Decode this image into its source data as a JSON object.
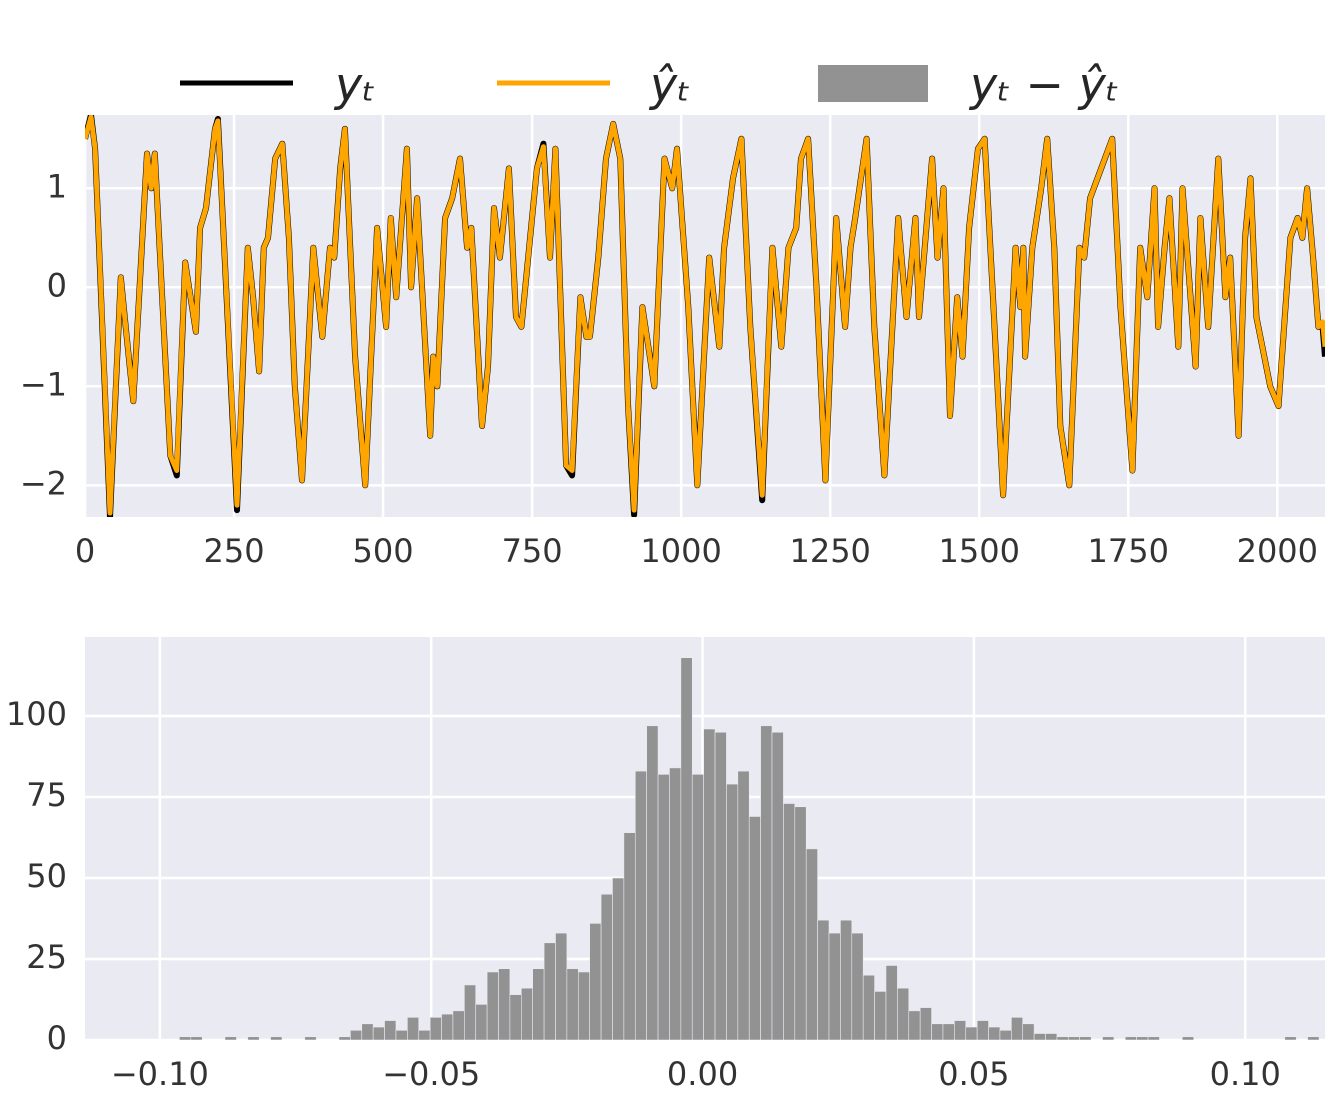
{
  "chart_data": [
    {
      "type": "line",
      "x": [
        0,
        10,
        17,
        42,
        60,
        70,
        81,
        104,
        111,
        117,
        143,
        154,
        168,
        186,
        193,
        203,
        218,
        223,
        255,
        273,
        282,
        292,
        300,
        307,
        319,
        331,
        342,
        352,
        364,
        383,
        398,
        411,
        418,
        428,
        436,
        453,
        470,
        490,
        505,
        513,
        522,
        540,
        547,
        557,
        579,
        584,
        591,
        604,
        616,
        629,
        641,
        648,
        666,
        676,
        686,
        696,
        711,
        723,
        732,
        758,
        769,
        780,
        789,
        807,
        817,
        831,
        841,
        847,
        861,
        874,
        886,
        898,
        911,
        921,
        935,
        955,
        972,
        985,
        993,
        1012,
        1027,
        1047,
        1064,
        1072,
        1087,
        1101,
        1116,
        1136,
        1153,
        1168,
        1180,
        1193,
        1201,
        1213,
        1227,
        1242,
        1260,
        1275,
        1284,
        1292,
        1311,
        1324,
        1341,
        1364,
        1378,
        1393,
        1399,
        1421,
        1430,
        1440,
        1451,
        1463,
        1472,
        1483,
        1498,
        1509,
        1524,
        1540,
        1561,
        1569,
        1574,
        1577,
        1589,
        1604,
        1614,
        1626,
        1636,
        1651,
        1668,
        1676,
        1686,
        1723,
        1737,
        1757,
        1770,
        1782,
        1794,
        1800,
        1811,
        1819,
        1834,
        1841,
        1863,
        1871,
        1884,
        1901,
        1913,
        1921,
        1935,
        1946,
        1955,
        1965,
        1988,
        2002,
        2022,
        2034,
        2042,
        2050,
        2060,
        2069,
        2076,
        2080
      ],
      "series": [
        {
          "name": "yₜ",
          "color": "#000000",
          "values": [
            1.5,
            1.74,
            1.4,
            -2.32,
            0.1,
            -0.5,
            -1.15,
            1.35,
            1.0,
            1.35,
            -1.7,
            -1.9,
            0.25,
            -0.45,
            0.6,
            0.8,
            1.6,
            1.7,
            -2.25,
            0.4,
            -0.1,
            -0.85,
            0.4,
            0.5,
            1.3,
            1.45,
            0.5,
            -1.0,
            -1.95,
            0.4,
            -0.5,
            0.4,
            0.3,
            1.2,
            1.6,
            -0.7,
            -2.0,
            0.6,
            -0.4,
            0.7,
            -0.1,
            1.4,
            0.0,
            0.9,
            -1.5,
            -0.7,
            -1.0,
            0.7,
            0.9,
            1.3,
            0.4,
            0.6,
            -1.4,
            -0.8,
            0.8,
            0.3,
            1.2,
            -0.3,
            -0.4,
            1.2,
            1.45,
            0.3,
            1.4,
            -1.8,
            -1.9,
            -0.1,
            -0.5,
            -0.5,
            0.3,
            1.3,
            1.65,
            1.3,
            -1.2,
            -2.3,
            -0.2,
            -1.0,
            1.3,
            1.0,
            1.4,
            -0.2,
            -2.0,
            0.3,
            -0.6,
            0.4,
            1.1,
            1.5,
            -0.4,
            -2.15,
            0.4,
            -0.6,
            0.4,
            0.6,
            1.3,
            1.5,
            0.0,
            -1.95,
            0.7,
            -0.4,
            0.4,
            0.7,
            1.5,
            -0.4,
            -1.9,
            0.7,
            -0.3,
            0.7,
            -0.3,
            1.3,
            0.3,
            1.0,
            -1.3,
            -0.1,
            -0.7,
            0.6,
            1.4,
            1.5,
            -0.2,
            -2.1,
            0.4,
            -0.2,
            0.4,
            -0.7,
            0.4,
            1.0,
            1.5,
            0.4,
            -1.4,
            -2.0,
            0.4,
            0.3,
            0.9,
            1.5,
            -0.2,
            -1.85,
            0.4,
            -0.1,
            1.0,
            -0.4,
            0.4,
            0.9,
            -0.6,
            1.0,
            -0.8,
            0.7,
            -0.4,
            1.3,
            -0.1,
            0.3,
            -1.5,
            0.5,
            1.1,
            -0.3,
            -1.0,
            -1.2,
            0.5,
            0.7,
            0.5,
            1.0,
            0.3,
            -0.4,
            -0.4,
            -0.7
          ]
        },
        {
          "name": "ŷₜ",
          "color": "#ffa500",
          "values": [
            1.5,
            1.72,
            1.4,
            -2.28,
            0.1,
            -0.5,
            -1.15,
            1.35,
            1.0,
            1.35,
            -1.7,
            -1.85,
            0.25,
            -0.45,
            0.6,
            0.8,
            1.6,
            1.68,
            -2.2,
            0.4,
            -0.1,
            -0.85,
            0.4,
            0.5,
            1.3,
            1.45,
            0.5,
            -1.0,
            -1.95,
            0.4,
            -0.5,
            0.4,
            0.3,
            1.2,
            1.6,
            -0.7,
            -2.0,
            0.6,
            -0.4,
            0.7,
            -0.1,
            1.4,
            0.0,
            0.9,
            -1.5,
            -0.7,
            -1.0,
            0.7,
            0.9,
            1.3,
            0.4,
            0.6,
            -1.4,
            -0.8,
            0.8,
            0.3,
            1.2,
            -0.3,
            -0.4,
            1.2,
            1.42,
            0.3,
            1.4,
            -1.8,
            -1.85,
            -0.1,
            -0.5,
            -0.5,
            0.3,
            1.3,
            1.65,
            1.3,
            -1.2,
            -2.25,
            -0.2,
            -1.0,
            1.3,
            1.0,
            1.4,
            -0.2,
            -2.0,
            0.3,
            -0.6,
            0.4,
            1.1,
            1.5,
            -0.4,
            -2.1,
            0.4,
            -0.6,
            0.4,
            0.6,
            1.3,
            1.5,
            0.0,
            -1.95,
            0.7,
            -0.4,
            0.4,
            0.7,
            1.5,
            -0.4,
            -1.9,
            0.7,
            -0.3,
            0.7,
            -0.3,
            1.3,
            0.3,
            1.0,
            -1.3,
            -0.1,
            -0.7,
            0.6,
            1.4,
            1.5,
            -0.2,
            -2.1,
            0.4,
            -0.2,
            0.4,
            -0.7,
            0.4,
            1.0,
            1.5,
            0.4,
            -1.4,
            -2.0,
            0.4,
            0.3,
            0.9,
            1.5,
            -0.2,
            -1.85,
            0.4,
            -0.1,
            1.0,
            -0.4,
            0.4,
            0.9,
            -0.6,
            1.0,
            -0.8,
            0.7,
            -0.4,
            1.3,
            -0.1,
            0.3,
            -1.5,
            0.5,
            1.1,
            -0.3,
            -1.0,
            -1.2,
            0.5,
            0.7,
            0.5,
            1.0,
            0.3,
            -0.4,
            -0.35,
            -0.6
          ]
        }
      ],
      "xlim": [
        0,
        2080
      ],
      "ylim": [
        -2.32,
        1.74
      ],
      "xticks": [
        0,
        250,
        500,
        750,
        1000,
        1250,
        1500,
        1750,
        2000
      ],
      "yticks": [
        {
          "value": -2,
          "label": "−2"
        },
        {
          "value": -1,
          "label": "−1"
        },
        0,
        1
      ],
      "grid": true
    },
    {
      "type": "histogram",
      "name": "yₜ − ŷₜ",
      "color": "#929292",
      "bins": [
        -0.0985,
        -0.0964,
        -0.0943,
        -0.0922,
        -0.0901,
        -0.088,
        -0.0859,
        -0.0838,
        -0.0817,
        -0.0796,
        -0.0775,
        -0.0754,
        -0.0733,
        -0.0712,
        -0.0691,
        -0.067,
        -0.0649,
        -0.0628,
        -0.0607,
        -0.0586,
        -0.0565,
        -0.0544,
        -0.0523,
        -0.0502,
        -0.0481,
        -0.046,
        -0.0439,
        -0.0418,
        -0.0397,
        -0.0376,
        -0.0355,
        -0.0334,
        -0.0313,
        -0.0292,
        -0.0271,
        -0.025,
        -0.0229,
        -0.0208,
        -0.0187,
        -0.0166,
        -0.0145,
        -0.0124,
        -0.0103,
        -0.0082,
        -0.0061,
        -0.004,
        -0.0019,
        0.0002,
        0.0023,
        0.0044,
        0.0065,
        0.0086,
        0.0107,
        0.0128,
        0.0149,
        0.017,
        0.0191,
        0.0212,
        0.0233,
        0.0254,
        0.0275,
        0.0296,
        0.0317,
        0.0338,
        0.0359,
        0.038,
        0.0401,
        0.0422,
        0.0443,
        0.0464,
        0.0485,
        0.0506,
        0.0527,
        0.0548,
        0.0569,
        0.059,
        0.0611,
        0.0632,
        0.0653,
        0.0674,
        0.0695,
        0.0716,
        0.0737,
        0.0758,
        0.0779,
        0.08,
        0.0821,
        0.0842,
        0.0863,
        0.0884,
        0.0905,
        0.0926,
        0.0947,
        0.0968,
        0.0989,
        0.101,
        0.1031,
        0.1052,
        0.1073,
        0.1094,
        0.1115,
        0.1136
      ],
      "values": [
        0,
        1,
        1,
        0,
        0,
        1,
        0,
        1,
        0,
        1,
        0,
        0,
        1,
        0,
        0,
        1,
        3,
        5,
        4,
        6,
        3,
        7,
        3,
        7,
        8,
        9,
        17,
        11,
        21,
        22,
        14,
        16,
        22,
        30,
        33,
        22,
        21,
        36,
        45,
        50,
        64,
        83,
        97,
        82,
        84,
        118,
        82,
        96,
        95,
        79,
        83,
        69,
        97,
        95,
        73,
        72,
        59,
        37,
        33,
        37,
        33,
        20,
        15,
        23,
        16,
        9,
        10,
        5,
        5,
        6,
        4,
        6,
        4,
        3,
        7,
        5,
        2,
        2,
        1,
        1,
        1,
        0,
        1,
        0,
        1,
        1,
        1,
        0,
        0,
        1,
        0,
        0,
        0,
        0,
        0,
        0,
        0,
        0,
        1,
        0,
        1
      ],
      "xlim": [
        -0.1138,
        0.1147
      ],
      "ylim": [
        0,
        124.4
      ],
      "xticks": [
        {
          "value": -0.1,
          "label": "−0.10"
        },
        {
          "value": -0.05,
          "label": "−0.05"
        },
        {
          "value": 0,
          "label": "0.00"
        },
        {
          "value": 0.05,
          "label": "0.05"
        },
        {
          "value": 0.1,
          "label": "0.10"
        }
      ],
      "yticks": [
        0,
        25,
        50,
        75,
        100
      ],
      "grid": true
    }
  ]
}
